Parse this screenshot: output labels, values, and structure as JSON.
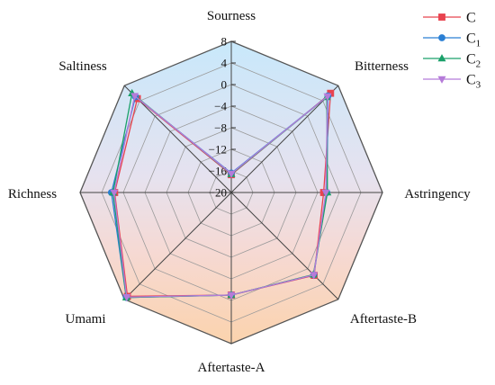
{
  "chart_data": {
    "type": "radar",
    "axes": [
      "Sourness",
      "Bitterness",
      "Astringency",
      "Aftertaste-B",
      "Aftertaste-A",
      "Umami",
      "Richness",
      "Saltiness"
    ],
    "rlim": [
      -20,
      8
    ],
    "ticks": [
      8,
      4,
      0,
      -4,
      -8,
      -12,
      -16,
      -20
    ],
    "grid": true,
    "legend_position": "top-right",
    "series": [
      {
        "name": "C",
        "sub": "",
        "color": "#e8434f",
        "marker": "square",
        "values": [
          -16.7,
          6.0,
          -2.9,
          1.7,
          -1.0,
          7.2,
          1.6,
          4.6
        ]
      },
      {
        "name": "C",
        "sub": "1",
        "color": "#2a7fd4",
        "marker": "circle",
        "values": [
          -16.4,
          5.3,
          -2.3,
          1.6,
          -1.0,
          7.5,
          2.2,
          5.1
        ]
      },
      {
        "name": "C",
        "sub": "2",
        "color": "#1aa06a",
        "marker": "triangle",
        "values": [
          -16.6,
          5.0,
          -2.2,
          1.5,
          -1.0,
          7.5,
          1.9,
          6.0
        ]
      },
      {
        "name": "C",
        "sub": "3",
        "color": "#b57bd9",
        "marker": "triangle-down",
        "values": [
          -16.5,
          5.2,
          -2.5,
          1.6,
          -1.0,
          7.4,
          1.7,
          5.3
        ]
      }
    ]
  }
}
